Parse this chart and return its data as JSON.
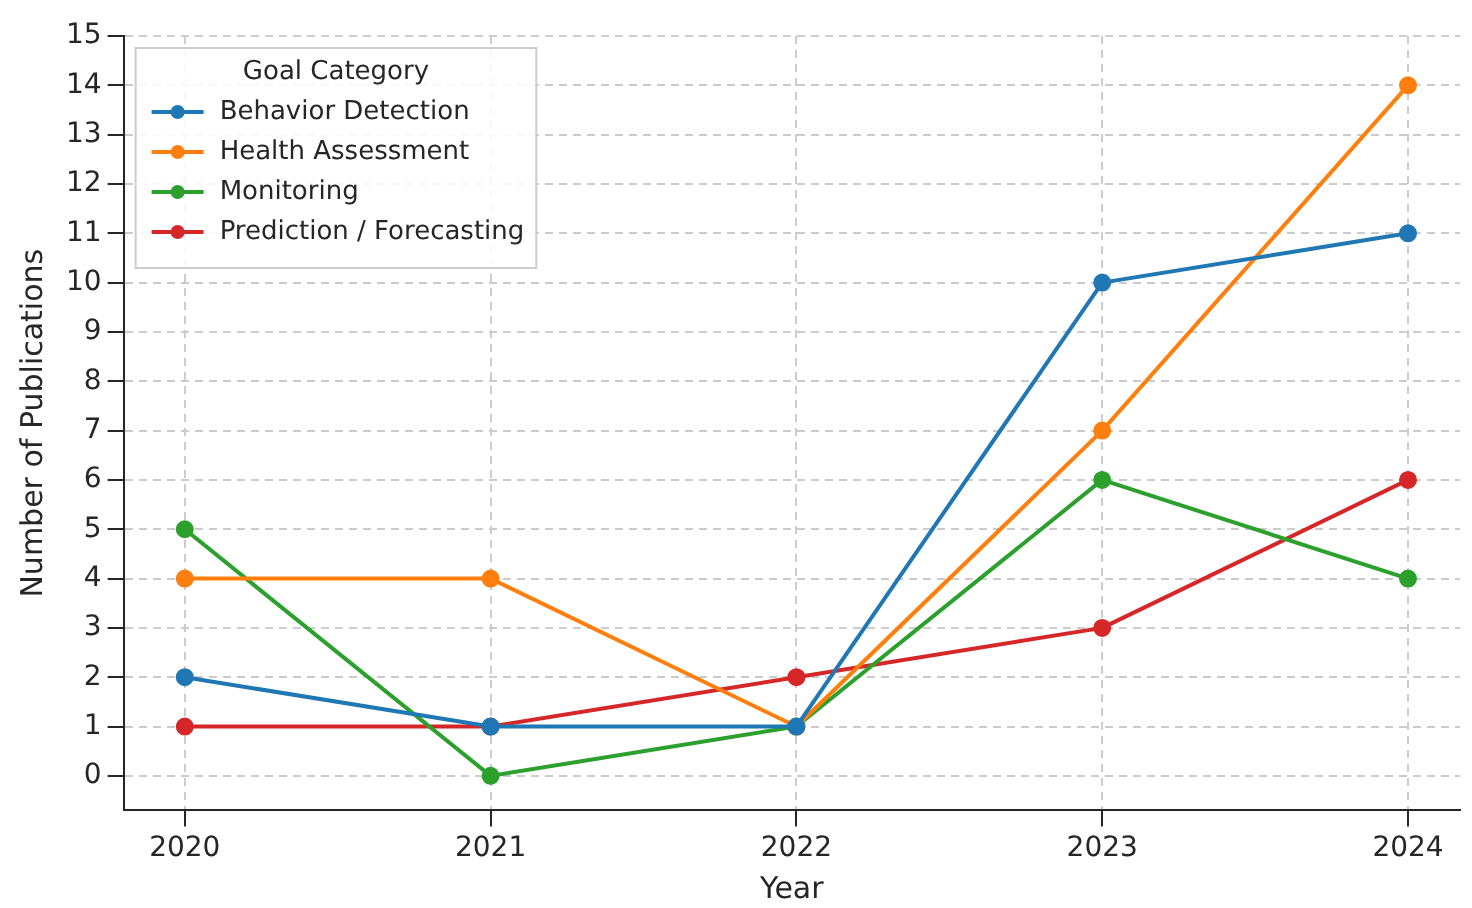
{
  "chart_data": {
    "type": "line",
    "xlabel": "Year",
    "ylabel": "Number of Publications",
    "legend_title": "Goal Category",
    "x": [
      2020,
      2021,
      2022,
      2023,
      2024
    ],
    "series": [
      {
        "name": "Behavior Detection",
        "color": "#1f77b4",
        "values": [
          2,
          1,
          1,
          10,
          11
        ]
      },
      {
        "name": "Health Assessment",
        "color": "#ff7f0e",
        "values": [
          4,
          4,
          1,
          7,
          14
        ]
      },
      {
        "name": "Monitoring",
        "color": "#2ca02c",
        "values": [
          5,
          0,
          1,
          6,
          4
        ]
      },
      {
        "name": "Prediction / Forecasting",
        "color": "#d62728",
        "values": [
          1,
          1,
          2,
          3,
          6
        ]
      }
    ],
    "xlim": [
      2019.8,
      2024.17
    ],
    "xticks": [
      2020,
      2021,
      2022,
      2023,
      2024
    ],
    "ylim": [
      -0.7,
      15
    ],
    "yticks": [
      0,
      1,
      2,
      3,
      4,
      5,
      6,
      7,
      8,
      9,
      10,
      11,
      12,
      13,
      14,
      15
    ],
    "grid": true,
    "legend": "top left",
    "marker": "circle",
    "line_style": "solid"
  }
}
